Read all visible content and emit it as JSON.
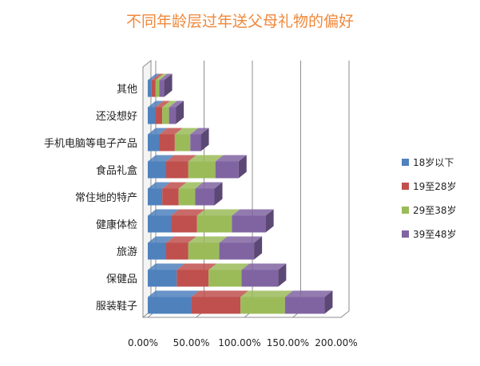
{
  "chart_data": {
    "type": "bar",
    "orientation": "horizontal",
    "stacked": true,
    "three_d": true,
    "title": "不同年龄层过年送父母礼物的偏好",
    "categories": [
      "服装鞋子",
      "保健品",
      "旅游",
      "健康体检",
      "常住地的特产",
      "食品礼盒",
      "手机电脑等电子产品",
      "还没想好",
      "其他"
    ],
    "series": [
      {
        "name": "18岁以下",
        "color": "#4f81bd",
        "values": [
          0.45,
          0.3,
          0.19,
          0.24,
          0.15,
          0.19,
          0.12,
          0.08,
          0.04
        ]
      },
      {
        "name": "19至28岁",
        "color": "#c0504d",
        "values": [
          0.51,
          0.33,
          0.23,
          0.27,
          0.17,
          0.23,
          0.16,
          0.07,
          0.04
        ]
      },
      {
        "name": "29至38岁",
        "color": "#9bbb59",
        "values": [
          0.46,
          0.34,
          0.32,
          0.36,
          0.17,
          0.28,
          0.16,
          0.07,
          0.04
        ]
      },
      {
        "name": "39至48岁",
        "color": "#8064a2",
        "values": [
          0.41,
          0.38,
          0.36,
          0.35,
          0.2,
          0.24,
          0.11,
          0.07,
          0.05
        ]
      }
    ],
    "xlim": [
      0,
      2.0
    ],
    "x_ticks": [
      "0.00%",
      "50.00%",
      "100.00%",
      "150.00%",
      "200.00%"
    ],
    "grid": true,
    "legend_position": "right"
  }
}
